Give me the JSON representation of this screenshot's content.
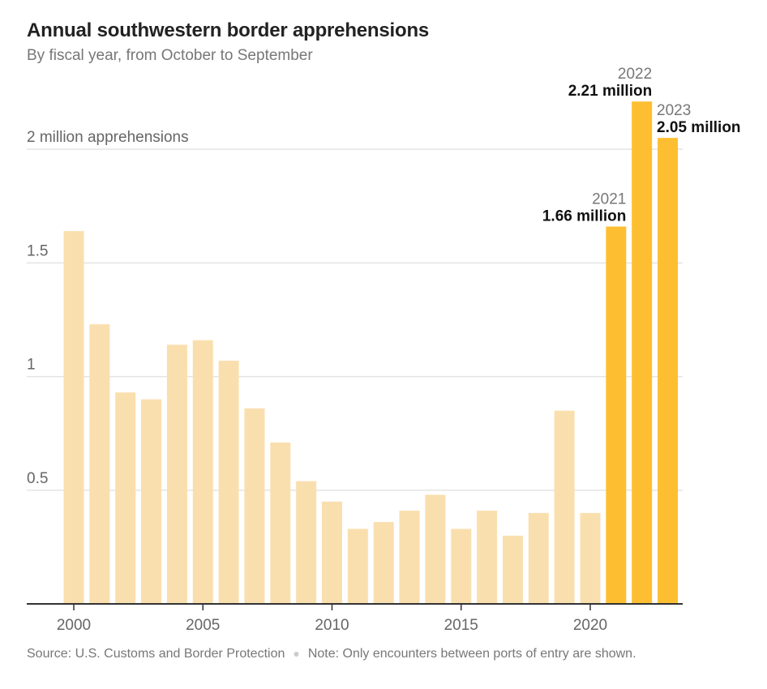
{
  "colors": {
    "muted_bar": "#fadfae",
    "highlight_bar": "#fdbf31",
    "grid": "#e4e4e4",
    "axis": "#333333"
  },
  "chart_data": {
    "type": "bar",
    "title": "Annual southwestern border apprehensions",
    "subtitle": "By fiscal year, from October to September",
    "ylim": [
      0,
      2.3
    ],
    "y_ticks": [
      0.5,
      1,
      1.5,
      2
    ],
    "y_tick_labels": [
      "0.5",
      "1",
      "1.5",
      "2 million apprehensions"
    ],
    "x_ticks": [
      2000,
      2005,
      2010,
      2015,
      2020
    ],
    "x_tick_labels": [
      "2000",
      "2005",
      "2010",
      "2015",
      "2020"
    ],
    "x": [
      2000,
      2001,
      2002,
      2003,
      2004,
      2005,
      2006,
      2007,
      2008,
      2009,
      2010,
      2011,
      2012,
      2013,
      2014,
      2015,
      2016,
      2017,
      2018,
      2019,
      2020,
      2021,
      2022,
      2023
    ],
    "values": [
      1.64,
      1.23,
      0.93,
      0.9,
      1.14,
      1.16,
      1.07,
      0.86,
      0.71,
      0.54,
      0.45,
      0.33,
      0.36,
      0.41,
      0.48,
      0.33,
      0.41,
      0.3,
      0.4,
      0.85,
      0.4,
      1.66,
      2.21,
      2.05
    ],
    "highlight": [
      2021,
      2022,
      2023
    ],
    "annotations": [
      {
        "year": 2021,
        "year_label": "2021",
        "value_label": "1.66 million",
        "align": "right"
      },
      {
        "year": 2022,
        "year_label": "2022",
        "value_label": "2.21 million",
        "align": "right"
      },
      {
        "year": 2023,
        "year_label": "2023",
        "value_label": "2.05 million",
        "align": "left"
      }
    ]
  },
  "footer": {
    "source": "Source: U.S. Customs and Border Protection",
    "note": "Note: Only encounters between ports of entry are shown."
  }
}
